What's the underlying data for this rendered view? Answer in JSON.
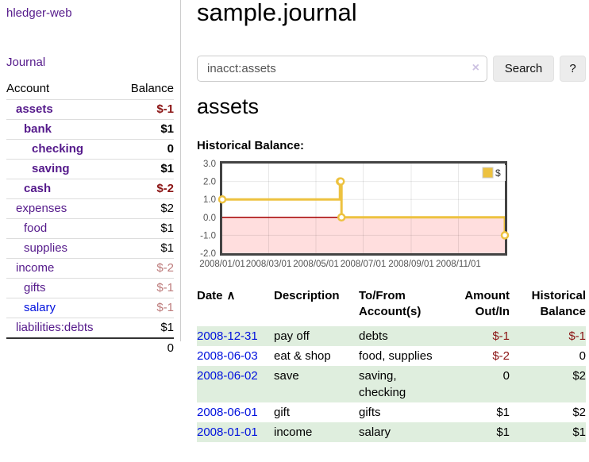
{
  "app": {
    "brand": "hledger-web",
    "nav_journal": "Journal"
  },
  "sidebar": {
    "header": {
      "account": "Account",
      "balance": "Balance"
    },
    "accounts": [
      {
        "name": "assets",
        "depth": 1,
        "bold": true,
        "balance": "$-1"
      },
      {
        "name": "bank",
        "depth": 2,
        "bold": true,
        "balance": "$1"
      },
      {
        "name": "checking",
        "depth": 3,
        "bold": true,
        "balance": "0"
      },
      {
        "name": "saving",
        "depth": 3,
        "bold": true,
        "balance": "$1"
      },
      {
        "name": "cash",
        "depth": 2,
        "bold": true,
        "balance": "$-2"
      },
      {
        "name": "expenses",
        "depth": 1,
        "bold": false,
        "balance": "$2"
      },
      {
        "name": "food",
        "depth": 2,
        "bold": false,
        "balance": "$1"
      },
      {
        "name": "supplies",
        "depth": 2,
        "bold": false,
        "balance": "$1"
      },
      {
        "name": "income",
        "depth": 1,
        "bold": false,
        "balance": "$-2"
      },
      {
        "name": "gifts",
        "depth": 2,
        "bold": false,
        "balance": "$-1"
      },
      {
        "name": "salary",
        "depth": 2,
        "bold": false,
        "balance": "$-1",
        "unvisited": true
      },
      {
        "name": "liabilities:debts",
        "depth": 1,
        "bold": false,
        "balance": "$1"
      }
    ],
    "total": "0"
  },
  "header": {
    "title": "sample.journal"
  },
  "search": {
    "value": "inacct:assets",
    "clear_icon": "×",
    "button": "Search",
    "help_button": "?"
  },
  "account_page": {
    "heading": "assets",
    "chart_label": "Historical Balance:"
  },
  "chart_data": {
    "type": "line",
    "step": true,
    "title": "Historical Balance",
    "series": [
      {
        "name": "$",
        "color": "#edc240",
        "points": [
          [
            "2008-01-01",
            1
          ],
          [
            "2008-06-01",
            2
          ],
          [
            "2008-06-02",
            2
          ],
          [
            "2008-06-03",
            0
          ],
          [
            "2008-12-31",
            -1
          ]
        ]
      }
    ],
    "xrange": [
      "2008-01-01",
      "2008-12-31"
    ],
    "ylim": [
      -2,
      3
    ],
    "yticks": [
      3,
      2,
      1,
      0,
      -1,
      -2
    ],
    "xticks": [
      "2008/01/01",
      "2008/03/01",
      "2008/05/01",
      "2008/07/01",
      "2008/09/01",
      "2008/11/01"
    ],
    "grid": true,
    "legend_position": "top-right",
    "zero_line_color": "#a40000",
    "negative_region_color": "rgba(255,0,0,0.13)",
    "border_color": "#434343",
    "tick_label_color": "#545454"
  },
  "register": {
    "headers": [
      {
        "lines": [
          "Date"
        ],
        "sort": "∧",
        "align": "left"
      },
      {
        "lines": [
          "Description"
        ],
        "align": "left"
      },
      {
        "lines": [
          "To/From",
          "Account(s)"
        ],
        "align": "left"
      },
      {
        "lines": [
          "Amount",
          "Out/In"
        ],
        "align": "right"
      },
      {
        "lines": [
          "Historical",
          "Balance"
        ],
        "align": "right"
      }
    ],
    "rows": [
      {
        "date": "2008-12-31",
        "description": "pay off",
        "tofrom": "debts",
        "amount": "$-1",
        "balance": "$-1",
        "shade": true
      },
      {
        "date": "2008-06-03",
        "description": "eat & shop",
        "tofrom": "food, supplies",
        "amount": "$-2",
        "balance": "0",
        "shade": false
      },
      {
        "date": "2008-06-02",
        "description": "save",
        "tofrom": "saving,\nchecking",
        "amount": "0",
        "balance": "$2",
        "shade": true
      },
      {
        "date": "2008-06-01",
        "description": "gift",
        "tofrom": "gifts",
        "amount": "$1",
        "balance": "$2",
        "shade": false
      },
      {
        "date": "2008-01-01",
        "description": "income",
        "tofrom": "salary",
        "amount": "$1",
        "balance": "$1",
        "shade": true
      }
    ]
  }
}
